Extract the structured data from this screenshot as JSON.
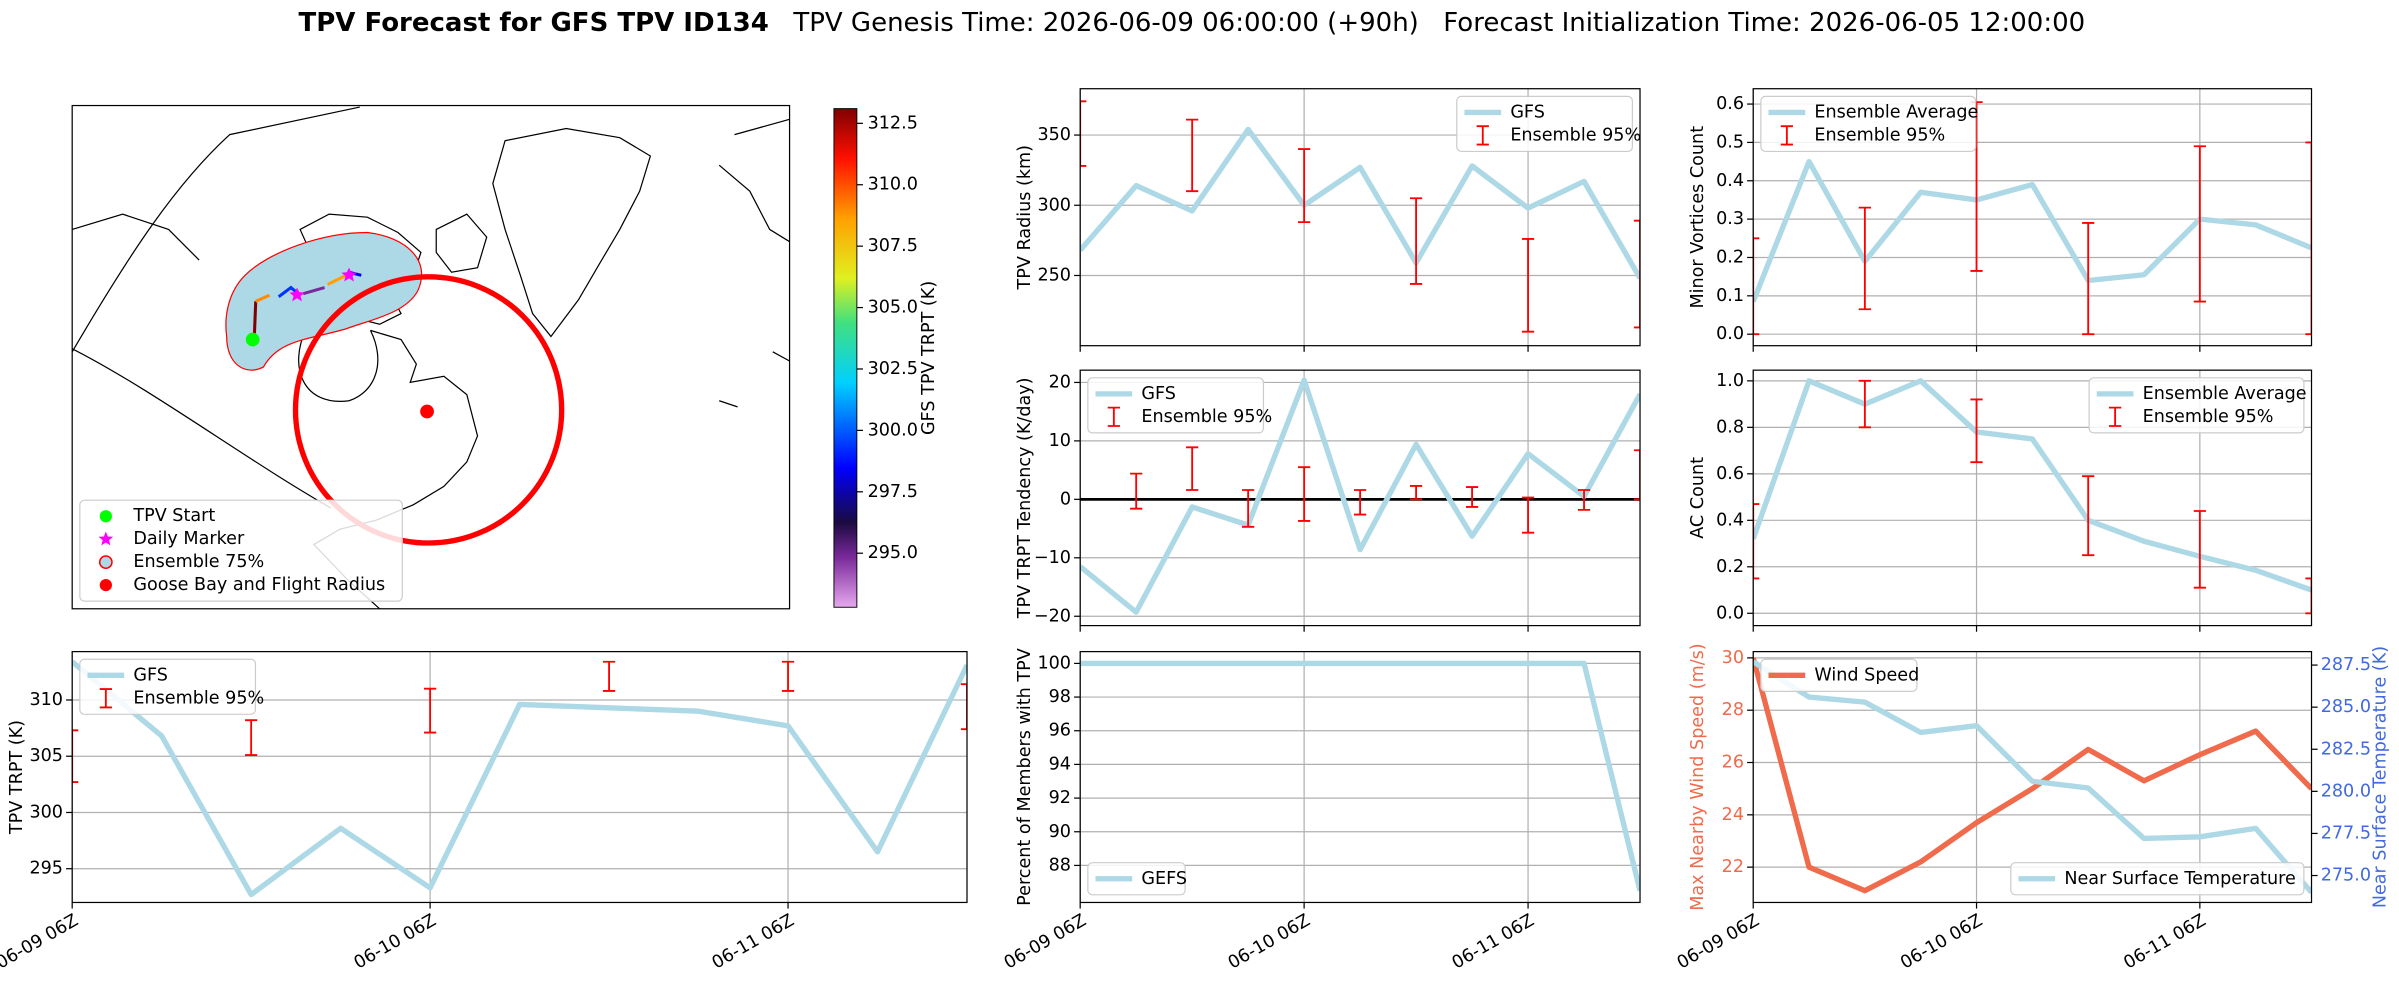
{
  "title": {
    "main": "TPV Forecast for GFS TPV ID134",
    "genesis": "TPV Genesis Time: 2026-06-09 06:00:00 (+90h)",
    "init": "Forecast Initialization Time: 2026-06-05 12:00:00"
  },
  "chart_data": [
    {
      "type": "map",
      "legend": "lower left",
      "legend_entries": [
        {
          "name": "TPV Start",
          "color": "#00ff00",
          "marker": "circle"
        },
        {
          "name": "Daily Marker",
          "color": "#ff00ff",
          "marker": "star"
        },
        {
          "name": "Ensemble 75%",
          "color": "#add8e6",
          "marker": "circle-edge"
        },
        {
          "name": "Goose Bay and Flight Radius",
          "color": "#ff0000",
          "marker": "circle"
        }
      ],
      "colorbar": {
        "label": "GFS TPV TRPT (K)",
        "clim": [
          292.8,
          313.1
        ],
        "ticks": [
          {
            "value": 295,
            "label": "295.0"
          },
          297.5,
          {
            "value": 300,
            "label": "300.0"
          },
          302.5,
          {
            "value": 305,
            "label": "305.0"
          },
          307.5,
          {
            "value": 310,
            "label": "310.0"
          },
          312.5
        ]
      }
    },
    {
      "type": "line",
      "ylabel": "TPV TRPT (K)",
      "grid": true,
      "legend": "upper left",
      "x": [
        0,
        6,
        12,
        18,
        24,
        30,
        36,
        42,
        48,
        54,
        60
      ],
      "xlim": [
        0,
        60
      ],
      "xticks": [
        {
          "value": 0,
          "label": "06-09 06Z"
        },
        {
          "value": 24,
          "label": "06-10 06Z"
        },
        {
          "value": 48,
          "label": "06-11 06Z"
        }
      ],
      "ylim": [
        292,
        314.3
      ],
      "yticks": [
        295,
        300,
        305,
        310
      ],
      "series": [
        {
          "name": "GFS",
          "color": "#add8e6",
          "values": [
            313.4,
            306.8,
            292.7,
            298.6,
            293.3,
            309.6,
            309.3,
            309.0,
            307.7,
            296.5,
            313.1
          ]
        },
        {
          "name": "Ensemble 95%",
          "type": "errorbar",
          "color": "#ff0000",
          "low": [
            302.7,
            null,
            305.1,
            null,
            307.1,
            null,
            310.8,
            null,
            310.8,
            null,
            307.4
          ],
          "high": [
            307.3,
            null,
            308.2,
            null,
            311.0,
            null,
            313.4,
            null,
            313.4,
            null,
            311.4
          ]
        }
      ]
    },
    {
      "type": "line",
      "ylabel": "TPV Radius (km)",
      "grid": true,
      "legend": "upper right",
      "x": [
        0,
        6,
        12,
        18,
        24,
        30,
        36,
        42,
        48,
        54,
        60
      ],
      "xlim": [
        0,
        60
      ],
      "xticks": [
        0,
        24,
        48
      ],
      "ylim": [
        200,
        383
      ],
      "yticks": [
        250,
        300,
        350
      ],
      "series": [
        {
          "name": "GFS",
          "color": "#add8e6",
          "values": [
            268,
            314,
            296,
            354,
            300,
            327,
            259,
            328,
            298,
            317,
            248
          ]
        },
        {
          "name": "Ensemble 95%",
          "type": "errorbar",
          "color": "#ff0000",
          "low": [
            328,
            null,
            310,
            null,
            288,
            null,
            244,
            null,
            210,
            null,
            213
          ],
          "high": [
            374,
            null,
            361,
            null,
            340,
            null,
            305,
            null,
            276,
            null,
            289
          ]
        }
      ]
    },
    {
      "type": "line",
      "ylabel": "TPV TRPT Tendency (K/day)",
      "grid": true,
      "legend": "upper left",
      "hline": 0,
      "x": [
        0,
        6,
        12,
        18,
        24,
        30,
        36,
        42,
        48,
        54,
        60
      ],
      "xlim": [
        0,
        60
      ],
      "xticks": [
        0,
        24,
        48
      ],
      "ylim": [
        -21.6,
        22.1
      ],
      "yticks": [
        {
          "value": -20,
          "label": "−20"
        },
        {
          "value": -10,
          "label": "−10"
        },
        0,
        10,
        20
      ],
      "series": [
        {
          "name": "GFS",
          "color": "#add8e6",
          "values": [
            -11.5,
            -19.3,
            -1.3,
            -4.4,
            20.4,
            -8.6,
            9.4,
            -6.3,
            7.8,
            0.5,
            18
          ]
        },
        {
          "name": "Ensemble 95%",
          "type": "errorbar",
          "color": "#ff0000",
          "low": [
            null,
            -1.6,
            1.6,
            -4.7,
            -3.7,
            -2.6,
            0,
            -1.3,
            -5.7,
            -1.8,
            0
          ],
          "high": [
            null,
            4.4,
            8.9,
            1.6,
            5.5,
            1.6,
            2.3,
            2.1,
            0.3,
            1.6,
            8.4
          ]
        }
      ]
    },
    {
      "type": "line",
      "ylabel": "Percent of Members with TPV",
      "grid": true,
      "legend": "lower left",
      "x": [
        0,
        6,
        12,
        18,
        24,
        30,
        36,
        42,
        48,
        54,
        60
      ],
      "xlim": [
        0,
        60
      ],
      "xticks": [
        {
          "value": 0,
          "label": "06-09 06Z"
        },
        {
          "value": 24,
          "label": "06-10 06Z"
        },
        {
          "value": 48,
          "label": "06-11 06Z"
        }
      ],
      "ylim": [
        85.8,
        100.7
      ],
      "yticks": [
        88,
        90,
        92,
        94,
        96,
        98,
        100
      ],
      "series": [
        {
          "name": "GEFS",
          "color": "#add8e6",
          "values": [
            100,
            100,
            100,
            100,
            100,
            100,
            100,
            100,
            100,
            100,
            86.5
          ]
        }
      ]
    },
    {
      "type": "line",
      "ylabel": "Minor Vortices Count",
      "grid": true,
      "legend": "upper left",
      "x": [
        0,
        6,
        12,
        18,
        24,
        30,
        36,
        42,
        48,
        54,
        60
      ],
      "xlim": [
        0,
        60
      ],
      "xticks": [
        0,
        24,
        48
      ],
      "ylim": [
        -0.03,
        0.64
      ],
      "yticks": [
        {
          "value": 0,
          "label": "0.0"
        },
        0.1,
        0.2,
        0.3,
        0.4,
        0.5,
        0.6
      ],
      "series": [
        {
          "name": "Ensemble Average",
          "color": "#add8e6",
          "values": [
            0.085,
            0.45,
            0.19,
            0.37,
            0.35,
            0.39,
            0.14,
            0.155,
            0.3,
            0.285,
            0.225
          ]
        },
        {
          "name": "Ensemble 95%",
          "type": "errorbar",
          "color": "#ff0000",
          "low": [
            0,
            null,
            0.065,
            null,
            0.165,
            null,
            0,
            null,
            0.085,
            null,
            0
          ],
          "high": [
            0.25,
            null,
            0.33,
            null,
            0.605,
            null,
            0.29,
            null,
            0.49,
            null,
            0.5
          ]
        }
      ]
    },
    {
      "type": "line",
      "ylabel": "AC Count",
      "grid": true,
      "legend": "upper right",
      "x": [
        0,
        6,
        12,
        18,
        24,
        30,
        36,
        42,
        48,
        54,
        60
      ],
      "xlim": [
        0,
        60
      ],
      "xticks": [
        0,
        24,
        48
      ],
      "ylim": [
        -0.053,
        1.046
      ],
      "yticks": [
        {
          "value": 0,
          "label": "0.0"
        },
        0.2,
        0.4,
        0.6,
        0.8,
        {
          "value": 1,
          "label": "1.0"
        }
      ],
      "series": [
        {
          "name": "Ensemble Average",
          "color": "#add8e6",
          "values": [
            0.32,
            1.0,
            0.9,
            1.0,
            0.78,
            0.75,
            0.4,
            0.31,
            0.245,
            0.185,
            0.1
          ]
        },
        {
          "name": "Ensemble 95%",
          "type": "errorbar",
          "color": "#ff0000",
          "low": [
            0.15,
            null,
            0.8,
            null,
            0.65,
            null,
            0.25,
            null,
            0.11,
            null,
            0
          ],
          "high": [
            0.47,
            null,
            1.0,
            null,
            0.92,
            null,
            0.59,
            null,
            0.44,
            null,
            0.15
          ]
        }
      ]
    },
    {
      "type": "line",
      "ylabel": "Max Nearby Wind Speed (m/s)",
      "y2label": "Near Surface Temperature (K)",
      "ycolor": "#f06a4c",
      "y2color": "#4169e1",
      "grid": true,
      "x": [
        0,
        6,
        12,
        18,
        24,
        30,
        36,
        42,
        48,
        54,
        60
      ],
      "xlim": [
        0,
        60
      ],
      "xticks": [
        {
          "value": 0,
          "label": "06-09 06Z"
        },
        {
          "value": 24,
          "label": "06-10 06Z"
        },
        {
          "value": 48,
          "label": "06-11 06Z"
        }
      ],
      "ylim": [
        20.65,
        30.24
      ],
      "yticks": [
        22,
        24,
        26,
        28,
        30
      ],
      "y2lim": [
        273.4,
        288.3
      ],
      "y2ticks": [
        {
          "value": 275,
          "label": "275.0"
        },
        277.5,
        {
          "value": 280,
          "label": "280.0"
        },
        282.5,
        {
          "value": 285,
          "label": "285.0"
        },
        287.5
      ],
      "series": [
        {
          "name": "Wind Speed",
          "color": "#f06a4c",
          "legend": "upper left",
          "values": [
            30,
            22,
            21.1,
            22.2,
            23.7,
            25,
            26.5,
            25.3,
            26.3,
            27.2,
            25
          ]
        },
        {
          "name": "Near Surface Temperature",
          "color": "#add8e6",
          "axis": "y2",
          "legend": "lower right",
          "values": [
            287.7,
            285.6,
            285.3,
            283.5,
            283.9,
            280.6,
            280.2,
            277.2,
            277.3,
            277.8,
            274.0
          ]
        }
      ]
    }
  ]
}
